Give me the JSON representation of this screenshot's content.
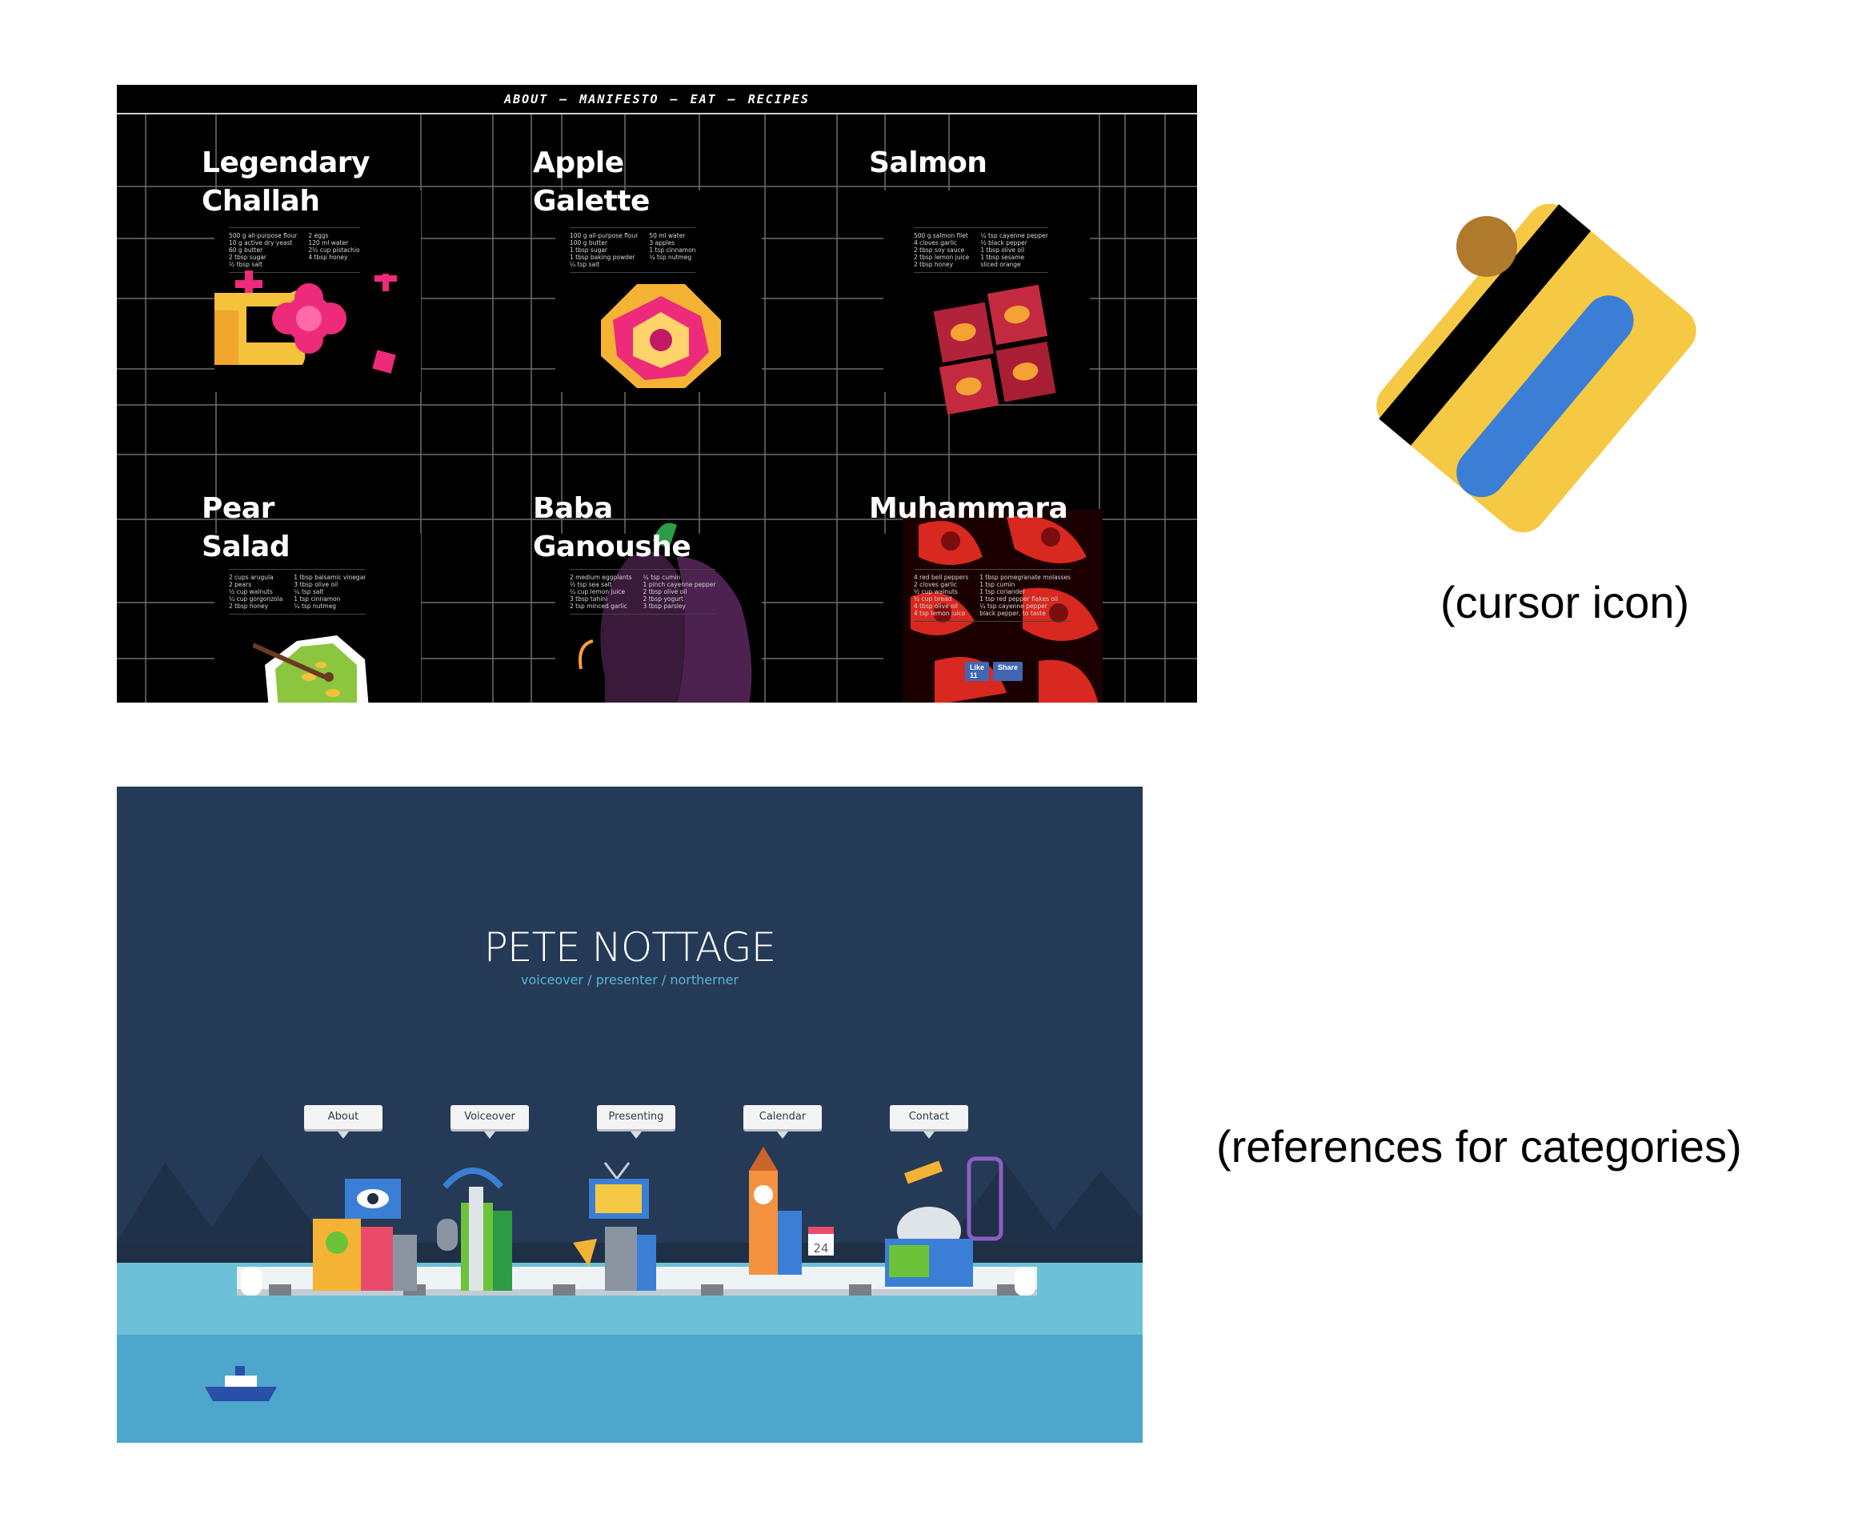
{
  "recipe_site": {
    "nav": {
      "items": [
        "ABOUT",
        "MANIFESTO",
        "EAT",
        "RECIPES"
      ],
      "separator": "—"
    },
    "cards": [
      {
        "title": "Legendary\nChallah",
        "ingredients": [
          [
            "500 g all-purpose flour",
            "10 g active dry yeast",
            "60 g butter",
            "2 tbsp sugar",
            "½ tbsp salt"
          ],
          [
            "2 eggs",
            "120 ml water",
            "2½ cup pistachio",
            "4 tbsp honey"
          ]
        ]
      },
      {
        "title": "Apple\nGalette",
        "ingredients": [
          [
            "100 g all-purpose flour",
            "100 g butter",
            "1 tbsp sugar",
            "1 tbsp baking powder",
            "¼ tsp salt"
          ],
          [
            "50 ml water",
            "3 apples",
            "1 tsp cinnamon",
            "¼ tsp nutmeg"
          ]
        ]
      },
      {
        "title": "Salmon",
        "ingredients": [
          [
            "500 g salmon filet",
            "4 cloves garlic",
            "2 tbsp soy sauce",
            "2 tbsp lemon juice",
            "2 tbsp honey"
          ],
          [
            "¼ tsp cayenne pepper",
            "½ black pepper",
            "1 tbsp olive oil",
            "1 tbsp sesame",
            "sliced orange"
          ]
        ]
      },
      {
        "title": "Pear Salad",
        "ingredients": [
          [
            "2 cups arugula",
            "2 pears",
            "½ cup walnuts",
            "¼ cup gorgonzola",
            "2 tbsp honey"
          ],
          [
            "1 tbsp balsamic vinegar",
            "3 tbsp olive oil",
            "¼ tsp salt",
            "1 tsp cinnamon",
            "¼ tsp nutmeg"
          ]
        ]
      },
      {
        "title": "Baba\nGanoushe",
        "ingredients": [
          [
            "2 medium eggplants",
            "½ tsp sea salt",
            "¼ cup lemon juice",
            "3 tbsp tahini",
            "2 tsp minced garlic"
          ],
          [
            "¼ tsp cumin",
            "1 pinch cayenne pepper",
            "2 tbsp olive oil",
            "2 tbsp yogurt",
            "3 tbsp parsley"
          ]
        ]
      },
      {
        "title": "Muhammara",
        "ingredients": [
          [
            "4 red bell peppers",
            "2 cloves garlic",
            "½ cup walnuts",
            "½ cup bread",
            "4 tbsp olive oil",
            "4 tsp lemon juice"
          ],
          [
            "1 tbsp pomegranate molasses",
            "1 tsp cumin",
            "1 tsp coriander",
            "1 tsp red pepper flakes oil",
            "¼ tsp cayenne pepper",
            "black pepper, to taste"
          ]
        ]
      }
    ],
    "social": {
      "like": "Like 11",
      "share": "Share"
    }
  },
  "cursor": {
    "icon": "credit-card-icon",
    "caption": "(cursor icon)",
    "colors": {
      "card": "#f5c944",
      "stripe": "#000000",
      "band": "#3a7fd5",
      "chip": "#b07a2c"
    }
  },
  "pete_site": {
    "title": "PETE NOTTAGE",
    "subtitle": "voiceover / presenter / northerner",
    "buttons": [
      "About",
      "Voiceover",
      "Presenting",
      "Calendar",
      "Contact"
    ],
    "calendar_date": "24",
    "colors": {
      "sky": "#253a56",
      "water": "#6cc1d8",
      "deep_water": "#4da6cb"
    }
  },
  "caption_categories": "(references for categories)"
}
